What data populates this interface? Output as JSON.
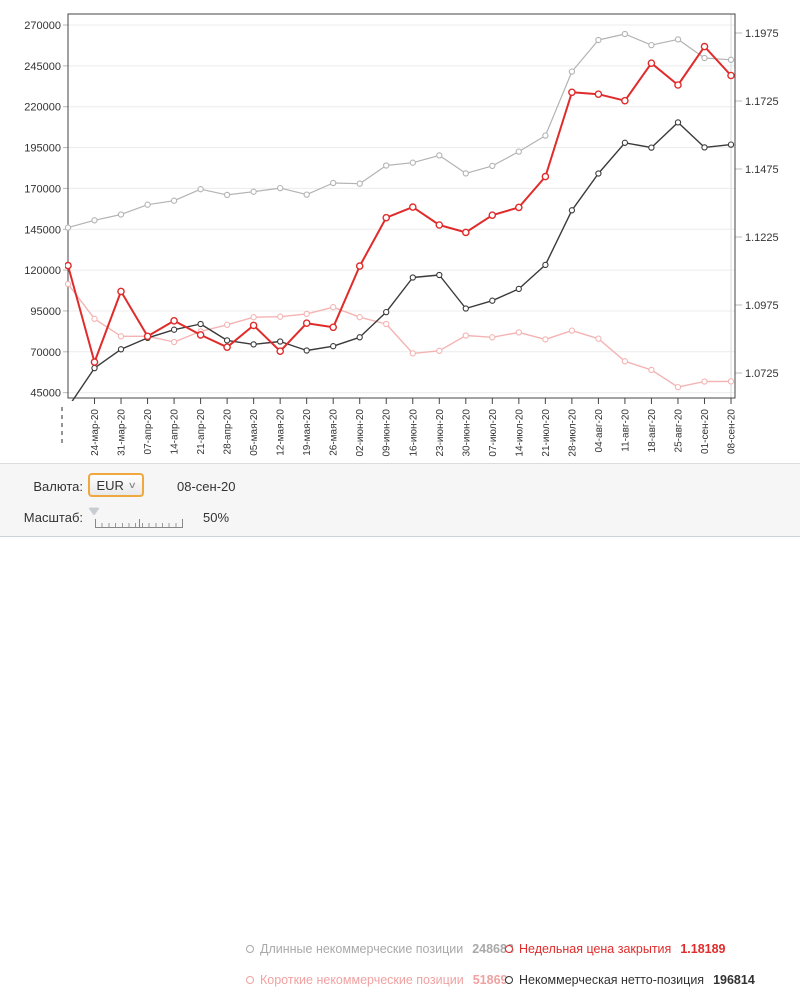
{
  "controls": {
    "currency_label": "Валюта:",
    "currency_value": "EUR",
    "date_value": "08-сен-20",
    "scale_label": "Масштаб:",
    "scale_value": "50%"
  },
  "legend": [
    {
      "label": "Длинные некоммерческие позиции",
      "value": "248683",
      "color": "#a9a9a9"
    },
    {
      "label": "Недельная цена закрытия",
      "value": "1.18189",
      "color": "#e02b2b"
    },
    {
      "label": "Короткие некоммерческие позиции",
      "value": "51869",
      "color": "#f0a2a2"
    },
    {
      "label": "Некоммерческая нетто-позиция",
      "value": "196814",
      "color": "#333333"
    }
  ],
  "chart_data": {
    "type": "line",
    "title": "",
    "grid": true,
    "legend_position": "bottom",
    "categories": [
      "",
      "24-мар-20",
      "31-мар-20",
      "07-апр-20",
      "14-апр-20",
      "21-апр-20",
      "28-апр-20",
      "05-мая-20",
      "12-мая-20",
      "19-мая-20",
      "26-мая-20",
      "02-июн-20",
      "09-июн-20",
      "16-июн-20",
      "23-июн-20",
      "30-июн-20",
      "07-июл-20",
      "14-июл-20",
      "21-июл-20",
      "28-июл-20",
      "04-авг-20",
      "11-авг-20",
      "18-авг-20",
      "25-авг-20",
      "01-сен-20",
      "08-сен-20"
    ],
    "left_axis": {
      "min": 45000,
      "max": 270000,
      "step": 25000,
      "ticks": [
        "270000",
        "245000",
        "220000",
        "195000",
        "170000",
        "145000",
        "120000",
        "95000",
        "70000",
        "45000"
      ]
    },
    "right_axis": {
      "min": 1.0725,
      "max": 1.1975,
      "step": 0.025,
      "ticks": [
        "1.1975",
        "1.1725",
        "1.1475",
        "1.1225",
        "1.0975",
        "1.0725"
      ]
    },
    "series": [
      {
        "name": "Длинные некоммерческие позиции",
        "axis": "left",
        "color": "#b3b3b3",
        "values": [
          146000,
          150500,
          154000,
          160000,
          162500,
          169500,
          166000,
          168000,
          170200,
          166200,
          173300,
          172900,
          184000,
          185700,
          190200,
          179200,
          183800,
          192500,
          202300,
          241500,
          260800,
          264500,
          257700,
          261200,
          249800,
          248683
        ]
      },
      {
        "name": "Короткие некоммерческие позиции",
        "axis": "left",
        "color": "#f4b4b4",
        "values": [
          111500,
          90200,
          79500,
          79500,
          76000,
          82500,
          86500,
          91200,
          91500,
          93200,
          97300,
          91200,
          87000,
          69000,
          70600,
          80000,
          78900,
          81900,
          77600,
          83000,
          78000,
          64200,
          58900,
          48400,
          51800,
          51869
        ]
      },
      {
        "name": "Некоммерческая нетто-позиция",
        "axis": "left",
        "color": "#3a3a3a",
        "values": [
          36000,
          60000,
          71500,
          78500,
          83500,
          87000,
          77000,
          74500,
          76300,
          70800,
          73400,
          78900,
          94300,
          115500,
          117000,
          96500,
          101300,
          108500,
          123200,
          156600,
          179100,
          197900,
          195000,
          210400,
          195100,
          196814
        ]
      },
      {
        "name": "Недельная цена закрытия",
        "axis": "right",
        "color": "#e02b2b",
        "values": [
          1.112,
          1.0765,
          1.1025,
          1.086,
          1.0917,
          1.0865,
          1.082,
          1.09,
          1.0805,
          1.0908,
          1.0893,
          1.1118,
          1.1296,
          1.1335,
          1.1269,
          1.1242,
          1.1305,
          1.1334,
          1.1447,
          1.1757,
          1.175,
          1.1726,
          1.1864,
          1.1784,
          1.1925,
          1.18189
        ]
      }
    ]
  }
}
